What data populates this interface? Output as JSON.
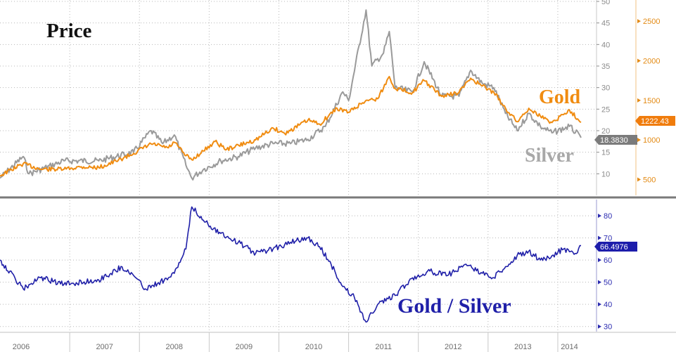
{
  "chart_data": [
    {
      "type": "line",
      "title": "Price",
      "x_range": [
        "2006-01",
        "2014-05"
      ],
      "axes": {
        "left": {
          "ylim": [
            5,
            50
          ],
          "ticks": [
            10,
            15,
            20,
            25,
            30,
            35,
            40,
            45,
            50
          ],
          "color": "#8c8c8c"
        },
        "right": {
          "ylim": [
            300,
            2750
          ],
          "ticks": [
            500,
            1000,
            1500,
            2000,
            2500
          ],
          "color": "#e38a14"
        }
      },
      "grid": true,
      "series": [
        {
          "name": "Gold",
          "axis": "right",
          "color": "#f08c11",
          "last_value": "1222.43",
          "points": [
            [
              "2006-01",
              550
            ],
            [
              "2006-05",
              700
            ],
            [
              "2006-08",
              630
            ],
            [
              "2006-12",
              630
            ],
            [
              "2007-03",
              660
            ],
            [
              "2007-06",
              650
            ],
            [
              "2007-09",
              730
            ],
            [
              "2007-12",
              830
            ],
            [
              "2008-03",
              950
            ],
            [
              "2008-06",
              900
            ],
            [
              "2008-07",
              970
            ],
            [
              "2008-09",
              800
            ],
            [
              "2008-10",
              750
            ],
            [
              "2008-12",
              860
            ],
            [
              "2009-02",
              980
            ],
            [
              "2009-04",
              880
            ],
            [
              "2009-09",
              1000
            ],
            [
              "2009-12",
              1150
            ],
            [
              "2010-02",
              1080
            ],
            [
              "2010-06",
              1250
            ],
            [
              "2010-08",
              1200
            ],
            [
              "2010-11",
              1400
            ],
            [
              "2011-01",
              1350
            ],
            [
              "2011-04",
              1500
            ],
            [
              "2011-06",
              1520
            ],
            [
              "2011-08",
              1800
            ],
            [
              "2011-09",
              1650
            ],
            [
              "2011-12",
              1600
            ],
            [
              "2012-02",
              1750
            ],
            [
              "2012-05",
              1550
            ],
            [
              "2012-08",
              1600
            ],
            [
              "2012-10",
              1780
            ],
            [
              "2012-12",
              1680
            ],
            [
              "2013-02",
              1600
            ],
            [
              "2013-04",
              1400
            ],
            [
              "2013-06",
              1230
            ],
            [
              "2013-08",
              1400
            ],
            [
              "2013-10",
              1300
            ],
            [
              "2013-12",
              1220
            ],
            [
              "2014-03",
              1380
            ],
            [
              "2014-05",
              1222.43
            ]
          ]
        },
        {
          "name": "Silver",
          "axis": "left",
          "color": "#9a9a9a",
          "last_value": "18.3830",
          "points": [
            [
              "2006-01",
              9
            ],
            [
              "2006-05",
              14
            ],
            [
              "2006-06",
              10
            ],
            [
              "2006-12",
              13
            ],
            [
              "2007-06",
              13
            ],
            [
              "2007-12",
              15
            ],
            [
              "2008-03",
              20
            ],
            [
              "2008-05",
              17
            ],
            [
              "2008-07",
              19
            ],
            [
              "2008-09",
              12
            ],
            [
              "2008-10",
              9
            ],
            [
              "2008-12",
              11
            ],
            [
              "2009-03",
              13
            ],
            [
              "2009-06",
              14
            ],
            [
              "2009-09",
              16
            ],
            [
              "2009-12",
              17
            ],
            [
              "2010-03",
              17
            ],
            [
              "2010-06",
              18
            ],
            [
              "2010-09",
              21
            ],
            [
              "2010-12",
              29
            ],
            [
              "2011-01",
              27
            ],
            [
              "2011-04",
              48
            ],
            [
              "2011-05",
              35
            ],
            [
              "2011-07",
              38
            ],
            [
              "2011-08",
              43
            ],
            [
              "2011-09",
              30
            ],
            [
              "2011-12",
              29
            ],
            [
              "2012-02",
              36
            ],
            [
              "2012-05",
              28
            ],
            [
              "2012-08",
              28
            ],
            [
              "2012-10",
              34
            ],
            [
              "2012-12",
              31
            ],
            [
              "2013-02",
              30
            ],
            [
              "2013-04",
              24
            ],
            [
              "2013-06",
              20
            ],
            [
              "2013-08",
              24
            ],
            [
              "2013-10",
              21
            ],
            [
              "2013-12",
              19.5
            ],
            [
              "2014-03",
              21
            ],
            [
              "2014-05",
              18.383
            ]
          ]
        }
      ]
    },
    {
      "type": "line",
      "title": "Gold / Silver",
      "x_range": [
        "2006-01",
        "2014-05"
      ],
      "axes": {
        "right": {
          "ylim": [
            28,
            87
          ],
          "ticks": [
            30,
            40,
            50,
            60,
            70,
            80
          ],
          "color": "#2b2bb0"
        }
      },
      "grid": true,
      "series": [
        {
          "name": "Gold / Silver",
          "axis": "right",
          "color": "#1f1fa8",
          "last_value": "66.4976",
          "points": [
            [
              "2006-01",
              60
            ],
            [
              "2006-05",
              47
            ],
            [
              "2006-08",
              52
            ],
            [
              "2006-12",
              49
            ],
            [
              "2007-06",
              51
            ],
            [
              "2007-10",
              57
            ],
            [
              "2007-12",
              53
            ],
            [
              "2008-02",
              47
            ],
            [
              "2008-06",
              52
            ],
            [
              "2008-07",
              54
            ],
            [
              "2008-09",
              65
            ],
            [
              "2008-10",
              84
            ],
            [
              "2008-12",
              78
            ],
            [
              "2009-03",
              72
            ],
            [
              "2009-06",
              68
            ],
            [
              "2009-09",
              63
            ],
            [
              "2009-12",
              65
            ],
            [
              "2010-03",
              68
            ],
            [
              "2010-06",
              70
            ],
            [
              "2010-08",
              66
            ],
            [
              "2010-10",
              58
            ],
            [
              "2010-12",
              48
            ],
            [
              "2011-02",
              43
            ],
            [
              "2011-04",
              32
            ],
            [
              "2011-06",
              40
            ],
            [
              "2011-09",
              44
            ],
            [
              "2011-12",
              52
            ],
            [
              "2012-03",
              55
            ],
            [
              "2012-06",
              53
            ],
            [
              "2012-09",
              58
            ],
            [
              "2012-12",
              54
            ],
            [
              "2013-02",
              52
            ],
            [
              "2013-04",
              57
            ],
            [
              "2013-06",
              62
            ],
            [
              "2013-08",
              64
            ],
            [
              "2013-10",
              60
            ],
            [
              "2013-12",
              62
            ],
            [
              "2014-02",
              65
            ],
            [
              "2014-04",
              63
            ],
            [
              "2014-05",
              66.4976
            ]
          ]
        }
      ]
    }
  ],
  "x_axis_labels": [
    "2006",
    "2007",
    "2008",
    "2009",
    "2010",
    "2011",
    "2012",
    "2013",
    "2014"
  ],
  "colors": {
    "gold": "#f08c11",
    "silver": "#9a9a9a",
    "ratio": "#1f1fa8",
    "silver_badge": "#7b7b7b",
    "gold_badge": "#f07c0c",
    "ratio_badge": "#1d1dab",
    "separator": "#7a7a7a"
  }
}
